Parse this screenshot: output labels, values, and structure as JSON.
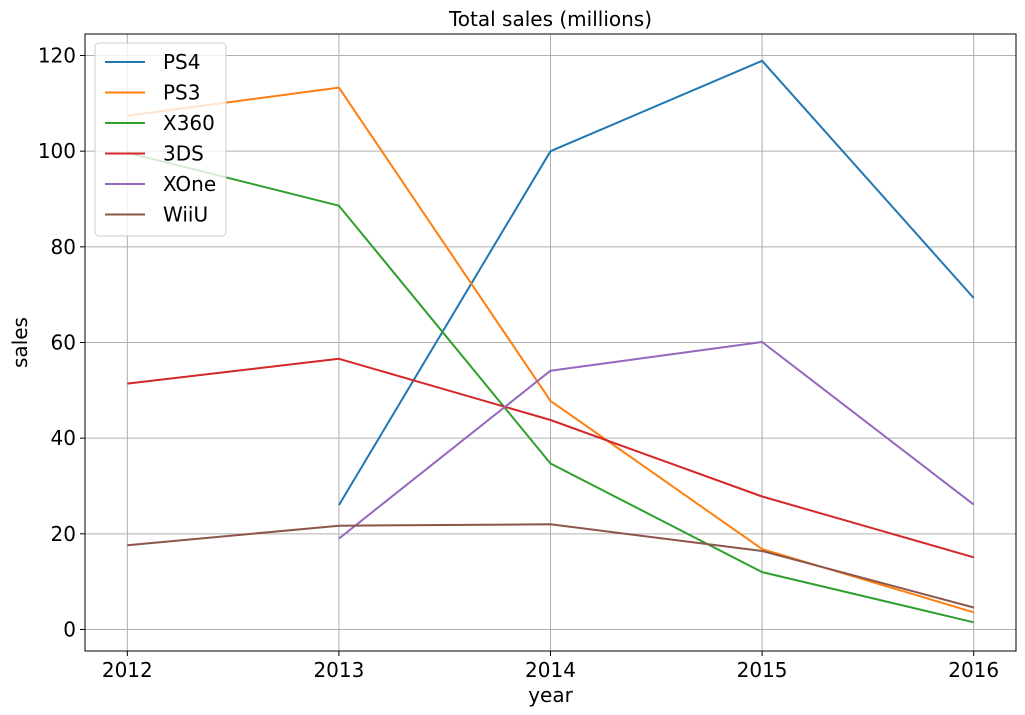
{
  "chart_data": {
    "type": "line",
    "title": "Total sales (millions)",
    "xlabel": "year",
    "ylabel": "sales",
    "x": [
      2012,
      2013,
      2014,
      2015,
      2016
    ],
    "x_tick_labels": [
      "2012",
      "2013",
      "2014",
      "2015",
      "2016"
    ],
    "y_ticks": [
      0,
      20,
      40,
      60,
      80,
      100,
      120
    ],
    "y_tick_labels": [
      "0",
      "20",
      "40",
      "60",
      "80",
      "100",
      "120"
    ],
    "xlim": [
      2011.8,
      2016.2
    ],
    "ylim": [
      -4.5,
      124.5
    ],
    "grid": true,
    "legend_position": "top-left",
    "series": [
      {
        "name": "PS4",
        "color": "#1f77b4",
        "values": [
          null,
          26.0,
          100.0,
          118.9,
          69.3
        ]
      },
      {
        "name": "PS3",
        "color": "#ff7f0e",
        "values": [
          107.4,
          113.3,
          47.8,
          16.8,
          3.6
        ]
      },
      {
        "name": "X360",
        "color": "#2ca02c",
        "values": [
          99.7,
          88.6,
          34.7,
          12.0,
          1.5
        ]
      },
      {
        "name": "3DS",
        "color": "#d62728",
        "values": [
          51.4,
          56.6,
          43.8,
          27.8,
          15.1
        ]
      },
      {
        "name": "XOne",
        "color": "#9467bd",
        "values": [
          null,
          19.0,
          54.1,
          60.1,
          26.1
        ]
      },
      {
        "name": "WiiU",
        "color": "#8c564b",
        "values": [
          17.6,
          21.7,
          22.0,
          16.4,
          4.6
        ]
      }
    ]
  }
}
